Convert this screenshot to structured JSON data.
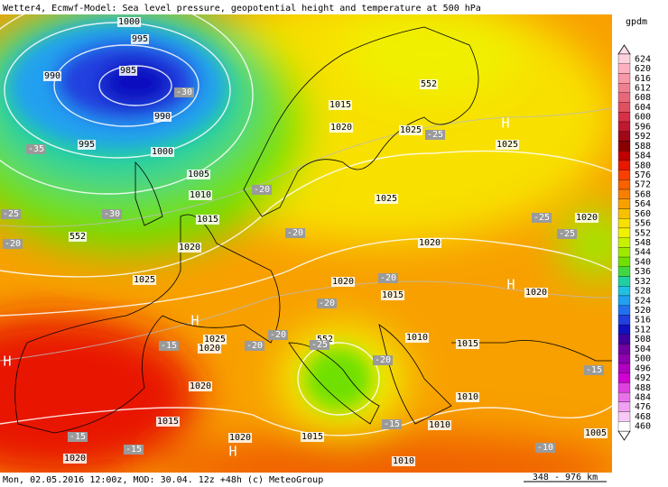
{
  "header": {
    "title": "Wetter4, Ecmwf-Model: Sea level pressure, geopotential height and temperature at 500 hPa"
  },
  "footer": {
    "info": "Mon, 02.05.2016 12:00z, MOD: 30.04. 12z +48h (c) MeteoGroup",
    "scale": "348 - 976 km"
  },
  "legend": {
    "unit": "gpdm",
    "levels": [
      624,
      620,
      616,
      612,
      608,
      604,
      600,
      596,
      592,
      588,
      584,
      580,
      576,
      572,
      568,
      564,
      560,
      556,
      552,
      548,
      544,
      540,
      536,
      532,
      528,
      524,
      520,
      516,
      512,
      508,
      504,
      500,
      496,
      492,
      488,
      484,
      476,
      468,
      460
    ],
    "colors": [
      "#ffd0dc",
      "#ffb0c0",
      "#f898a8",
      "#f08090",
      "#e86878",
      "#e05060",
      "#d83048",
      "#c01830",
      "#a00818",
      "#880000",
      "#c00000",
      "#e81800",
      "#f84000",
      "#f86000",
      "#f88000",
      "#f8a000",
      "#f8c000",
      "#f8e000",
      "#f0f000",
      "#c8f000",
      "#a0e800",
      "#70e000",
      "#40d840",
      "#20d0a0",
      "#20c0e0",
      "#20a0f0",
      "#2070f0",
      "#2040e0",
      "#1010c0",
      "#4000a0",
      "#7000a0",
      "#9000b0",
      "#b000c0",
      "#d000d0",
      "#e040e0",
      "#e870e8",
      "#f0a0f0",
      "#f8c8f8",
      "#ffffff"
    ]
  },
  "map": {
    "isobar_labels": [
      1000,
      995,
      990,
      985,
      990,
      995,
      1000,
      1005,
      1010,
      1015,
      1020,
      1025,
      1015,
      1020,
      1025,
      1025,
      1025,
      1020,
      1020,
      1020,
      1015,
      1020,
      1025,
      1020,
      1010,
      1015,
      1020,
      1010,
      1015,
      1010,
      1020,
      1015,
      1020,
      1010,
      1005,
      552,
      552,
      552
    ],
    "temperature_labels": [
      -30,
      -35,
      -25,
      -20,
      -25,
      -30,
      -20,
      -20,
      -25,
      -25,
      -20,
      -20,
      -20,
      -25,
      -15,
      -20,
      -20,
      -15,
      -15,
      -15,
      -15,
      -10
    ],
    "pressure_centers": [
      "H",
      "H",
      "H",
      "H",
      "H"
    ]
  }
}
